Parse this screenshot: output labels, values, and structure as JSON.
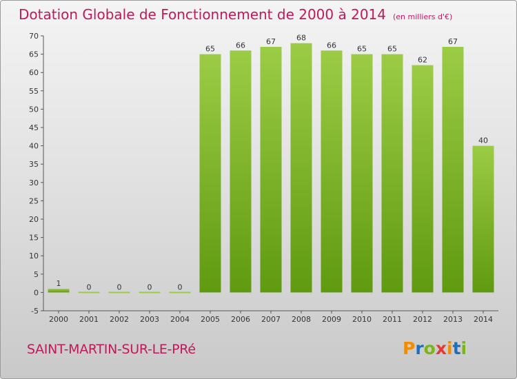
{
  "title": "Dotation Globale de Fonctionnement de 2000 à 2014",
  "unit": "(en milliers d'€)",
  "commune": "SAINT-MARTIN-SUR-LE-PRé",
  "logo": {
    "text": "Proxiti",
    "colors": [
      "#f28c00",
      "#1f6fbf",
      "#7cb518",
      "#e53935",
      "#f28c00",
      "#1f6fbf",
      "#7cb518"
    ]
  },
  "colors": {
    "bar_light": "#9ccc45",
    "bar_dark": "#5f9a10",
    "title": "#c2185b"
  },
  "chart_data": {
    "type": "bar",
    "categories": [
      "2000",
      "2001",
      "2002",
      "2003",
      "2004",
      "2005",
      "2006",
      "2007",
      "2008",
      "2009",
      "2010",
      "2011",
      "2012",
      "2013",
      "2014"
    ],
    "values": [
      1,
      0,
      0,
      0,
      0,
      65,
      66,
      67,
      68,
      66,
      65,
      65,
      62,
      67,
      40
    ],
    "title": "Dotation Globale de Fonctionnement de 2000 à 2014",
    "ylim": [
      -5,
      70
    ],
    "yticks": [
      -5,
      0,
      5,
      10,
      15,
      20,
      25,
      30,
      35,
      40,
      45,
      50,
      55,
      60,
      65,
      70
    ],
    "grid": false
  }
}
